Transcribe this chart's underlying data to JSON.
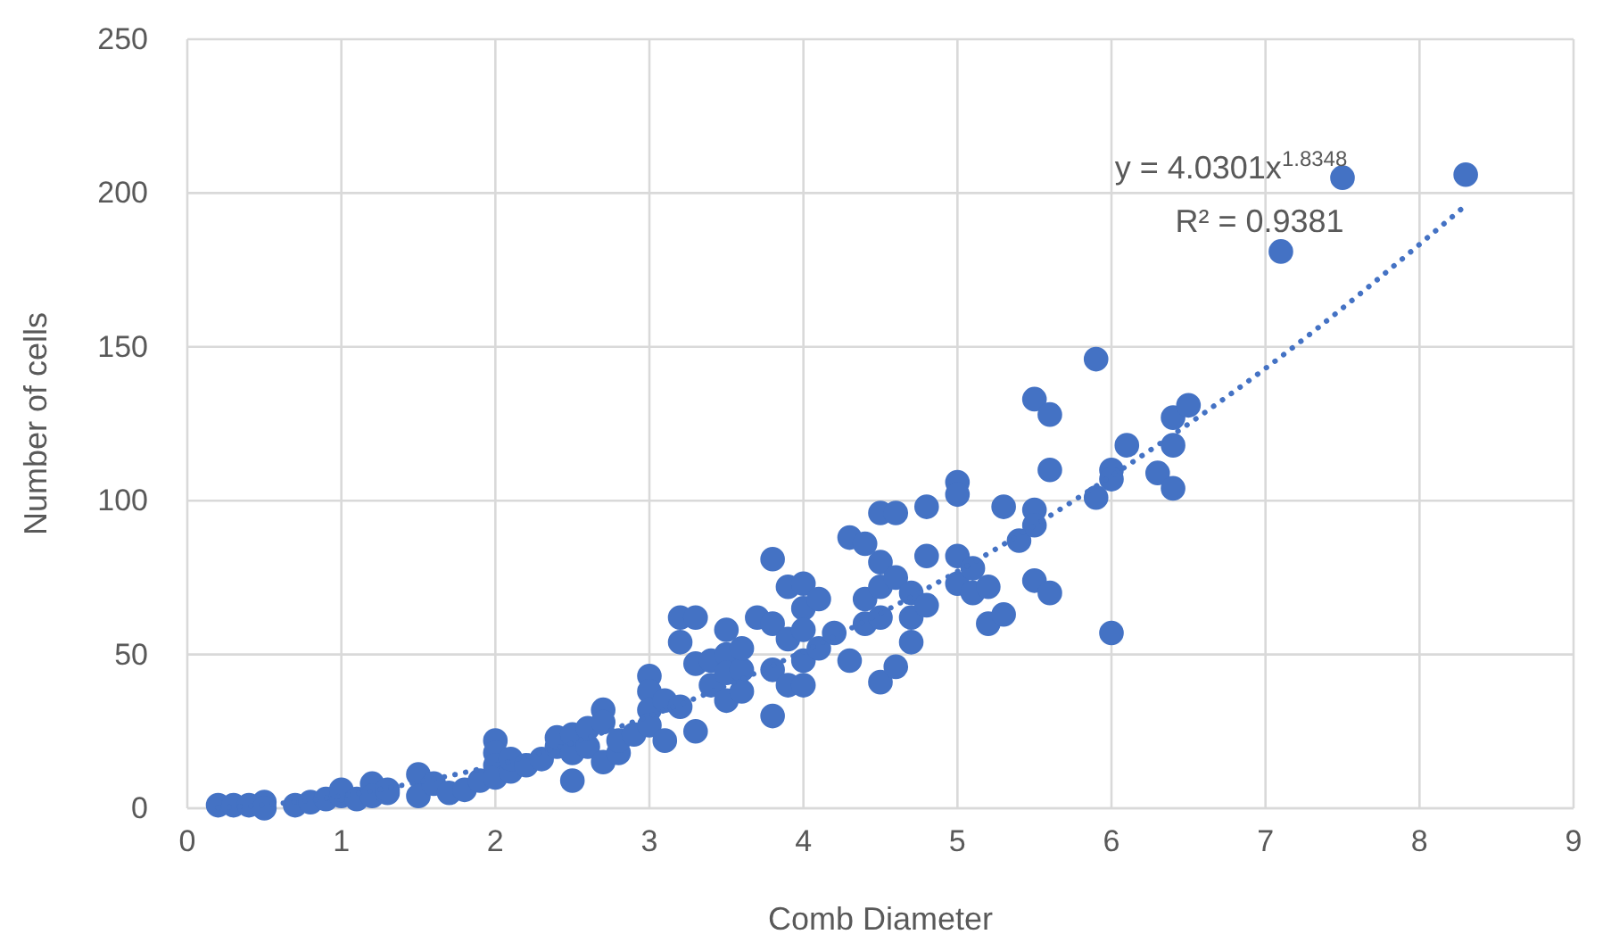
{
  "chart_data": {
    "type": "scatter",
    "xlabel": "Comb Diameter",
    "ylabel": "Number of cells",
    "xlim": [
      0,
      9
    ],
    "xticks": [
      0,
      1,
      2,
      3,
      4,
      5,
      6,
      7,
      8,
      9
    ],
    "ylim": [
      0,
      250
    ],
    "yticks": [
      0,
      50,
      100,
      150,
      200,
      250
    ],
    "grid": true,
    "annotations": [
      "y = 4.0301x$^{1.8348}$",
      "R² = 0.9381"
    ],
    "series": [
      {
        "color": "#4472c4",
        "marker": "circle",
        "x": [
          0.2,
          0.3,
          0.4,
          0.5,
          0.5,
          0.7,
          0.8,
          0.9,
          1,
          1,
          1.1,
          1.2,
          1.2,
          1.3,
          1.3,
          1.5,
          1.5,
          1.6,
          1.7,
          1.8,
          1.9,
          2,
          2,
          2,
          2,
          2.1,
          2.1,
          2.2,
          2.3,
          2.4,
          2.4,
          2.5,
          2.5,
          2.5,
          2.6,
          2.6,
          2.7,
          2.7,
          2.7,
          2.8,
          2.8,
          2.9,
          3,
          3,
          3,
          3,
          3.1,
          3.1,
          3.2,
          3.2,
          3.2,
          3.3,
          3.3,
          3.3,
          3.4,
          3.4,
          3.5,
          3.5,
          3.5,
          3.5,
          3.6,
          3.6,
          3.6,
          3.7,
          3.8,
          3.8,
          3.8,
          3.8,
          3.9,
          3.9,
          3.9,
          4,
          4,
          4,
          4,
          4,
          4.1,
          4.1,
          4.2,
          4.3,
          4.3,
          4.4,
          4.4,
          4.4,
          4.5,
          4.5,
          4.5,
          4.5,
          4.5,
          4.6,
          4.6,
          4.6,
          4.7,
          4.7,
          4.7,
          4.8,
          4.8,
          4.8,
          5,
          5,
          5,
          5,
          5.1,
          5.1,
          5.2,
          5.2,
          5.3,
          5.3,
          5.4,
          5.5,
          5.5,
          5.5,
          5.5,
          5.6,
          5.6,
          5.6,
          5.9,
          5.9,
          6,
          6,
          6,
          6.1,
          6.3,
          6.4,
          6.4,
          6.4,
          6.5,
          7.1,
          7.5,
          8.3
        ],
        "values": [
          1,
          1,
          1,
          2,
          0,
          1,
          2,
          3,
          4,
          6,
          3,
          8,
          4,
          5,
          6,
          11,
          4,
          8,
          5,
          6,
          9,
          22,
          18,
          14,
          10,
          12,
          16,
          14,
          16,
          20,
          23,
          9,
          18,
          24,
          20,
          26,
          32,
          28,
          15,
          18,
          22,
          24,
          43,
          38,
          32,
          27,
          22,
          35,
          54,
          62,
          33,
          62,
          47,
          25,
          40,
          48,
          58,
          50,
          35,
          44,
          45,
          38,
          52,
          62,
          81,
          30,
          45,
          60,
          72,
          55,
          40,
          73,
          65,
          48,
          40,
          58,
          68,
          52,
          57,
          88,
          48,
          86,
          68,
          60,
          96,
          80,
          72,
          41,
          62,
          96,
          75,
          46,
          70,
          62,
          54,
          98,
          82,
          66,
          106,
          102,
          82,
          73,
          78,
          70,
          72,
          60,
          98,
          63,
          87,
          133,
          97,
          92,
          74,
          128,
          110,
          70,
          146,
          101,
          110,
          107,
          57,
          118,
          109,
          127,
          118,
          104,
          131,
          181,
          205,
          206
        ]
      },
      {
        "type": "line",
        "color": "#4472c4",
        "line_style": "dotted",
        "marker": "none",
        "x": [
          0.2,
          0.5,
          1,
          1.5,
          2,
          3,
          4,
          5,
          6,
          7,
          8.3
        ],
        "values": [
          0.2,
          1.1,
          4,
          8.5,
          14,
          30,
          51,
          77,
          108,
          143,
          196
        ]
      }
    ]
  }
}
